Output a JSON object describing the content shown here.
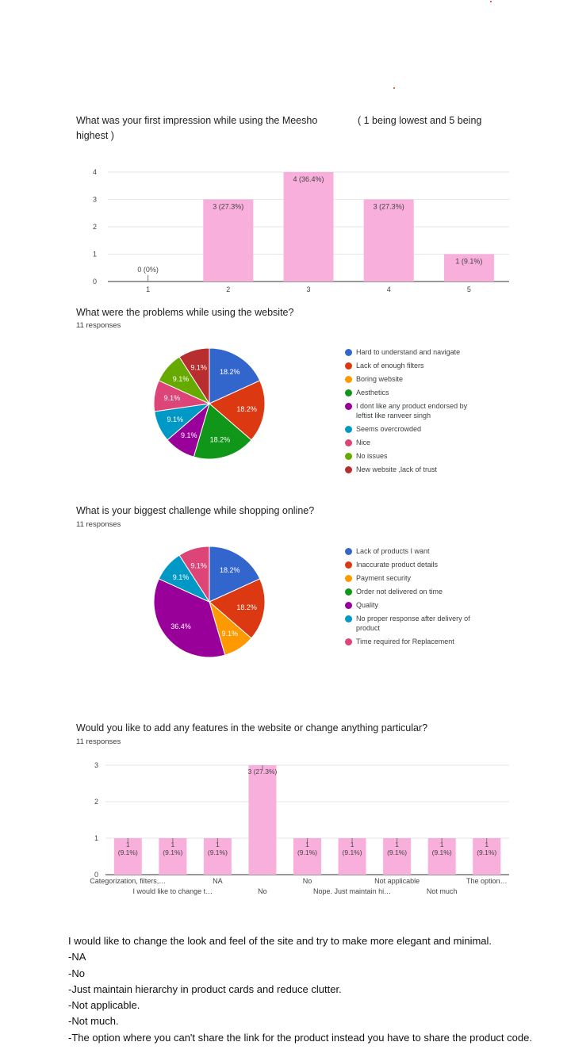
{
  "accent_color": "#f8afdc",
  "chart_data": [
    {
      "type": "bar",
      "title": "What was your first impression while using the Meesho",
      "title_suffix": "( 1 being lowest and 5 being",
      "title_line2": "highest )",
      "categories": [
        "1",
        "2",
        "3",
        "4",
        "5"
      ],
      "values": [
        0,
        3,
        4,
        3,
        1
      ],
      "labels": [
        "0 (0%)",
        "3 (27.3%)",
        "4 (36.4%)",
        "3 (27.3%)",
        "1 (9.1%)"
      ],
      "ylim": [
        0,
        4
      ],
      "yticks": [
        "0",
        "1",
        "2",
        "3",
        "4"
      ],
      "color": "#f8afdc",
      "grid": true
    },
    {
      "type": "pie",
      "title": "What were the problems while using the website?",
      "subtitle": "11 responses",
      "slices": [
        {
          "label": "Hard to understand and navigate",
          "value": 18.2,
          "text": "18.2%",
          "color": "#3366cc"
        },
        {
          "label": "Lack of enough filters",
          "value": 18.2,
          "text": "18.2%",
          "color": "#dc3912"
        },
        {
          "label": "Boring website",
          "value": 0,
          "text": "",
          "color": "#ff9900"
        },
        {
          "label": "Aesthetics",
          "value": 18.2,
          "text": "18.2%",
          "color": "#109618"
        },
        {
          "label": "I dont like any product endorsed by leftist like ranveer singh",
          "value": 9.1,
          "text": "9.1%",
          "color": "#990099"
        },
        {
          "label": "Seems overcrowded",
          "value": 9.1,
          "text": "9.1%",
          "color": "#0099c6"
        },
        {
          "label": "Nice",
          "value": 9.1,
          "text": "9.1%",
          "color": "#dd4477"
        },
        {
          "label": "No issues",
          "value": 9.1,
          "text": "9.1%",
          "color": "#66aa00"
        },
        {
          "label": "New website ,lack of trust",
          "value": 9.1,
          "text": "9.1%",
          "color": "#b82e2e"
        }
      ],
      "legend_position": "right"
    },
    {
      "type": "pie",
      "title": "What is your biggest challenge while shopping online?",
      "subtitle": "11 responses",
      "slices": [
        {
          "label": "Lack of products I want",
          "value": 18.2,
          "text": "18.2%",
          "color": "#3366cc"
        },
        {
          "label": "Inaccurate product details",
          "value": 18.2,
          "text": "18.2%",
          "color": "#dc3912"
        },
        {
          "label": "Payment security",
          "value": 9.1,
          "text": "9.1%",
          "color": "#ff9900"
        },
        {
          "label": "Order not delivered on time",
          "value": 0,
          "text": "",
          "color": "#109618"
        },
        {
          "label": "Quality",
          "value": 36.4,
          "text": "36.4%",
          "color": "#990099"
        },
        {
          "label": "No proper response after delivery of product",
          "value": 9.1,
          "text": "9.1%",
          "color": "#0099c6"
        },
        {
          "label": "Time required for Replacement",
          "value": 9.1,
          "text": "9.1%",
          "color": "#dd4477"
        }
      ],
      "legend_position": "right"
    },
    {
      "type": "bar",
      "title": "Would you like to add any features in the website or change anything particular?",
      "subtitle": "11 responses",
      "categories": [
        "Categorization, filters,…",
        "I would like to change t…",
        "NA",
        "No",
        "No",
        "Nope. Just maintain hi…",
        "Not applicable",
        "Not much",
        "The option…"
      ],
      "values": [
        1,
        1,
        1,
        3,
        1,
        1,
        1,
        1,
        1
      ],
      "labels_top": [
        "1",
        "1",
        "1",
        "3 (27.3%)",
        "1",
        "1",
        "1",
        "1",
        "1"
      ],
      "labels_bottom": [
        "(9.1%)",
        "(9.1%)",
        "(9.1%)",
        "",
        "(9.1%)",
        "(9.1%)",
        "(9.1%)",
        "(9.1%)",
        "(9.1%)"
      ],
      "ylim": [
        0,
        3
      ],
      "yticks": [
        "0",
        "1",
        "2",
        "3"
      ],
      "color": "#f8afdc",
      "grid": true
    }
  ],
  "notes": [
    "I would like to change the look and feel of   the   site and try to make more elegant and minimal.",
    "-NA",
    "-No",
    "-Just maintain hierarchy in product cards and reduce clutter.",
    "-Not applicable.",
    "-Not much.",
    "-The option where you can't share the link for the product instead you have to share the product code."
  ]
}
